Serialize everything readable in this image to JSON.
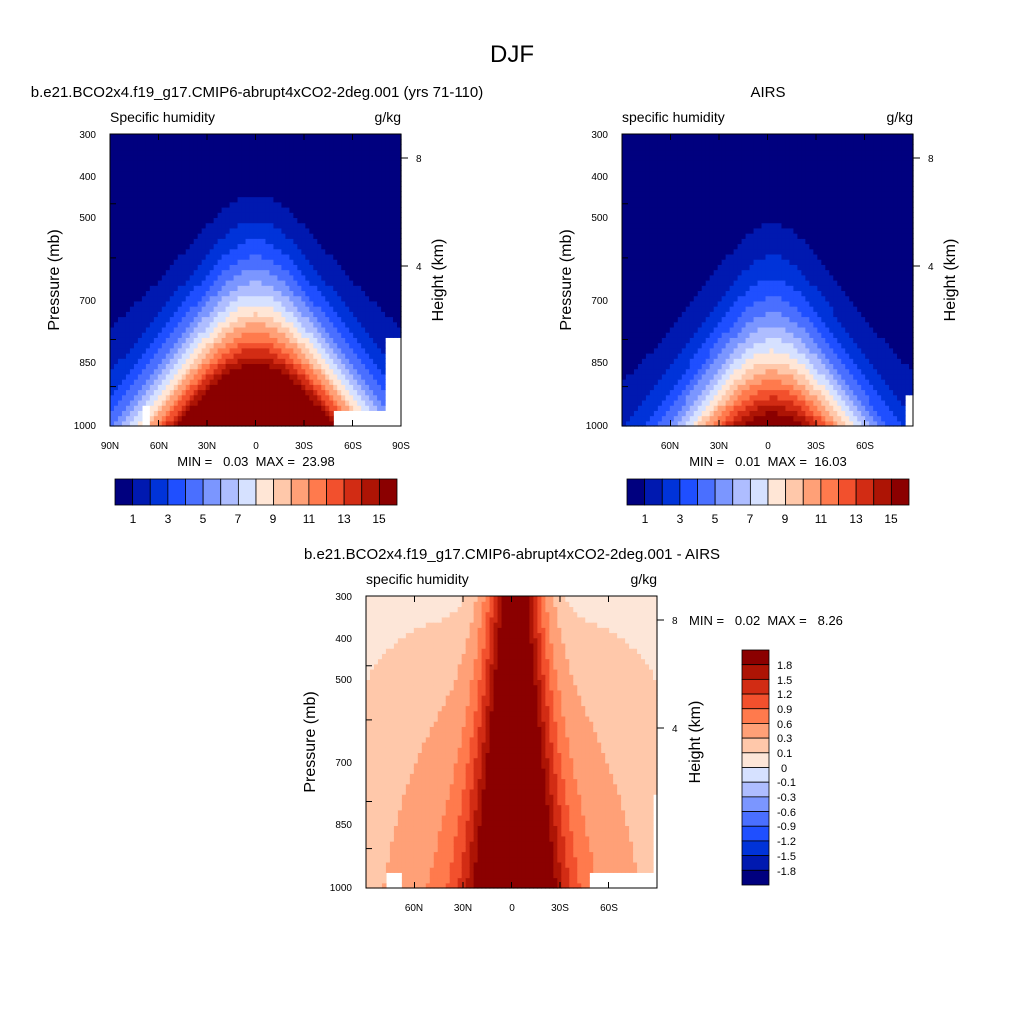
{
  "figure": {
    "title": "DJF"
  },
  "colors": {
    "abs_palette": [
      "#00007f",
      "#0019b0",
      "#0033d9",
      "#1f4fff",
      "#4a6fff",
      "#7b96ff",
      "#aebdff",
      "#d6e1ff",
      "#ffe6d6",
      "#ffc8aa",
      "#ffa077",
      "#ff7a4d",
      "#f2502d",
      "#d22c14",
      "#ad1405",
      "#8b0000"
    ],
    "diff_palette": [
      "#00007f",
      "#0019b0",
      "#0033d9",
      "#1f4fff",
      "#4a6fff",
      "#7b96ff",
      "#aebdff",
      "#d6e1ff",
      "#fde6d8",
      "#ffc8aa",
      "#ffa077",
      "#ff7a4d",
      "#f2502d",
      "#d22c14",
      "#ad1405",
      "#8b0000"
    ]
  },
  "chart_data": [
    {
      "type": "contour",
      "title": "b.e21.BCO2x4.f19_g17.CMIP6-abrupt4xCO2-2deg.001 (yrs 71-110)",
      "left_label": "Specific humidity",
      "right_label": "g/kg",
      "ylabel": "Pressure (mb)",
      "ylabel_right": "Height (km)",
      "yticks": [
        "300",
        "400",
        "500",
        "700",
        "850",
        "1000"
      ],
      "yticks_right": [
        "8",
        "4"
      ],
      "xticks": [
        "90N",
        "60N",
        "30N",
        "0",
        "30S",
        "60S",
        "90S"
      ],
      "minmax": "MIN =   0.03  MAX =  23.98",
      "colorbar_ticks": [
        "1",
        "3",
        "5",
        "7",
        "9",
        "11",
        "13",
        "15"
      ],
      "zmax": 23.98,
      "xlim": [
        90,
        -90
      ],
      "ylim": [
        1000,
        300
      ]
    },
    {
      "type": "contour",
      "title": "AIRS",
      "left_label": "specific humidity",
      "right_label": "g/kg",
      "ylabel": "Pressure (mb)",
      "ylabel_right": "Height (km)",
      "yticks": [
        "300",
        "400",
        "500",
        "700",
        "850",
        "1000"
      ],
      "yticks_right": [
        "8",
        "4"
      ],
      "xticks": [
        "60N",
        "30N",
        "0",
        "30S",
        "60S"
      ],
      "minmax": "MIN =   0.01  MAX =  16.03",
      "colorbar_ticks": [
        "1",
        "3",
        "5",
        "7",
        "9",
        "11",
        "13",
        "15"
      ],
      "zmax": 16.03,
      "xlim": [
        90,
        -90
      ],
      "ylim": [
        1000,
        300
      ]
    },
    {
      "type": "contour",
      "title": "b.e21.BCO2x4.f19_g17.CMIP6-abrupt4xCO2-2deg.001 - AIRS",
      "left_label": "specific humidity",
      "right_label": "g/kg",
      "ylabel": "Pressure (mb)",
      "ylabel_right": "Height (km)",
      "yticks": [
        "300",
        "400",
        "500",
        "700",
        "850",
        "1000"
      ],
      "yticks_right": [
        "8",
        "4"
      ],
      "xticks": [
        "60N",
        "30N",
        "0",
        "30S",
        "60S"
      ],
      "minmax": "MIN =   0.02  MAX =   8.26",
      "colorbar_labels": [
        "1.8",
        "1.5",
        "1.2",
        "0.9",
        "0.6",
        "0.3",
        "0.1",
        "0",
        "-0.1",
        "-0.3",
        "-0.6",
        "-0.9",
        "-1.2",
        "-1.5",
        "-1.8"
      ],
      "zmax": 8.26,
      "xlim": [
        90,
        -90
      ],
      "ylim": [
        1000,
        300
      ]
    }
  ]
}
